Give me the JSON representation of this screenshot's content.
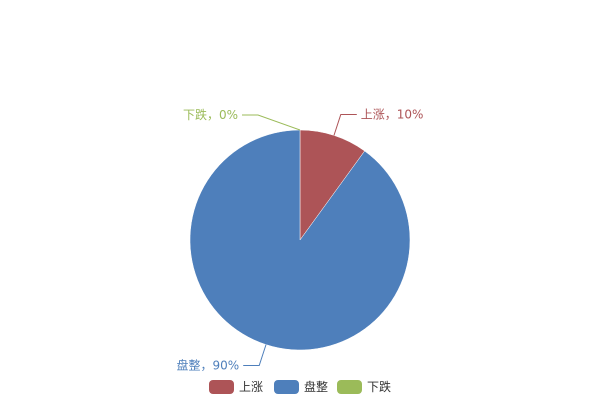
{
  "chart_data": {
    "type": "pie",
    "title": "",
    "slices": [
      {
        "name": "上涨",
        "value": 10,
        "label": "上涨，10%",
        "color": "#AD5457"
      },
      {
        "name": "盘整",
        "value": 90,
        "label": "盘整，90%",
        "color": "#4E7FBB"
      },
      {
        "name": "下跌",
        "value": 0,
        "label": "下跌，0%",
        "color": "#9BBB59"
      }
    ],
    "legend": {
      "placement": "bottom",
      "items": [
        "上涨",
        "盘整",
        "下跌"
      ]
    },
    "start_angle": "12 o'clock, clockwise"
  }
}
